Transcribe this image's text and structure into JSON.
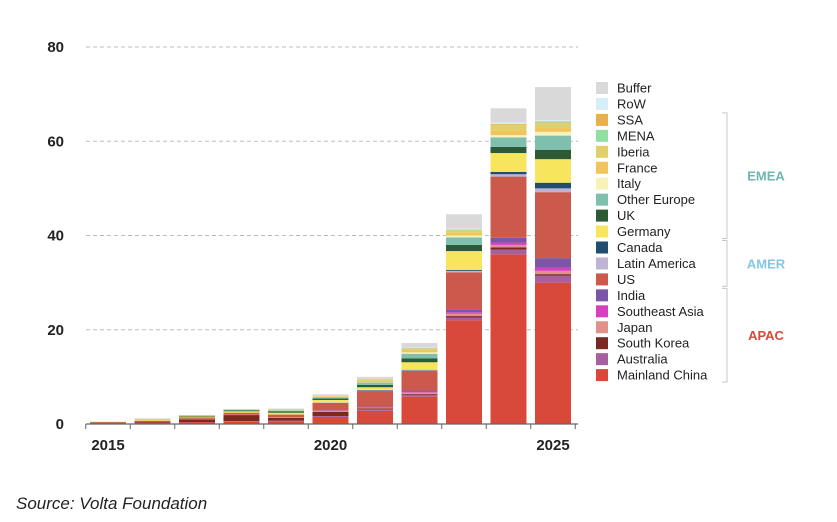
{
  "chart_data": {
    "type": "bar",
    "stacked": true,
    "title": "",
    "xlabel": "",
    "ylabel": "",
    "ylim": [
      0,
      80
    ],
    "yticks": [
      0,
      20,
      40,
      60,
      80
    ],
    "grid": true,
    "legend_position": "right",
    "categories": [
      "2015",
      "2016",
      "2017",
      "2018",
      "2019",
      "2020",
      "2021",
      "2022",
      "2023",
      "2024",
      "2025"
    ],
    "x_tick_labels": [
      {
        "index": 0,
        "label": "2015"
      },
      {
        "index": 5,
        "label": "2020"
      },
      {
        "index": 10,
        "label": "2025"
      }
    ],
    "series": [
      {
        "name": "Mainland China",
        "color": "#d9493a",
        "values": [
          0.2,
          0.3,
          0.4,
          0.5,
          0.6,
          1.5,
          2.8,
          5.8,
          22.0,
          36.0,
          30.0
        ]
      },
      {
        "name": "Australia",
        "color": "#a85fa0",
        "values": [
          0.0,
          0.0,
          0.0,
          0.1,
          0.1,
          0.2,
          0.3,
          0.4,
          0.6,
          1.0,
          1.5
        ]
      },
      {
        "name": "South Korea",
        "color": "#7a2a20",
        "values": [
          0.1,
          0.2,
          0.6,
          1.3,
          0.6,
          0.9,
          0.2,
          0.2,
          0.3,
          0.5,
          0.3
        ]
      },
      {
        "name": "Japan",
        "color": "#e0928a",
        "values": [
          0.0,
          0.0,
          0.1,
          0.1,
          0.1,
          0.2,
          0.2,
          0.3,
          0.5,
          0.5,
          0.7
        ]
      },
      {
        "name": "Southeast Asia",
        "color": "#d63fbf",
        "values": [
          0.0,
          0.0,
          0.0,
          0.0,
          0.0,
          0.0,
          0.1,
          0.2,
          0.3,
          0.5,
          0.7
        ]
      },
      {
        "name": "India",
        "color": "#7b55a8",
        "values": [
          0.0,
          0.0,
          0.0,
          0.0,
          0.0,
          0.1,
          0.1,
          0.2,
          0.5,
          1.0,
          2.0
        ]
      },
      {
        "name": "US",
        "color": "#cc5a4c",
        "values": [
          0.1,
          0.2,
          0.3,
          0.4,
          0.6,
          1.6,
          3.3,
          4.2,
          8.0,
          13.0,
          14.0
        ]
      },
      {
        "name": "Latin America",
        "color": "#c0b4d6",
        "values": [
          0.0,
          0.0,
          0.0,
          0.0,
          0.0,
          0.1,
          0.1,
          0.1,
          0.3,
          0.5,
          0.8
        ]
      },
      {
        "name": "Canada",
        "color": "#1f4e6e",
        "values": [
          0.0,
          0.0,
          0.0,
          0.0,
          0.0,
          0.0,
          0.1,
          0.1,
          0.2,
          0.5,
          1.2
        ]
      },
      {
        "name": "Germany",
        "color": "#f6e55d",
        "values": [
          0.1,
          0.2,
          0.2,
          0.3,
          0.4,
          0.5,
          0.6,
          1.6,
          4.0,
          4.0,
          5.0
        ]
      },
      {
        "name": "UK",
        "color": "#2c5a34",
        "values": [
          0.0,
          0.0,
          0.1,
          0.2,
          0.3,
          0.3,
          0.5,
          0.8,
          1.3,
          1.3,
          2.0
        ]
      },
      {
        "name": "Other Europe",
        "color": "#7fbfae",
        "values": [
          0.0,
          0.1,
          0.1,
          0.1,
          0.2,
          0.3,
          0.5,
          1.0,
          1.6,
          2.0,
          3.0
        ]
      },
      {
        "name": "Italy",
        "color": "#f7f2b8",
        "values": [
          0.0,
          0.0,
          0.0,
          0.0,
          0.1,
          0.1,
          0.1,
          0.3,
          0.4,
          0.5,
          0.8
        ]
      },
      {
        "name": "France",
        "color": "#f2c45c",
        "values": [
          0.0,
          0.1,
          0.0,
          0.1,
          0.1,
          0.2,
          0.3,
          0.4,
          0.6,
          1.0,
          0.8
        ]
      },
      {
        "name": "Iberia",
        "color": "#e0cf6a",
        "values": [
          0.0,
          0.0,
          0.0,
          0.0,
          0.1,
          0.1,
          0.2,
          0.3,
          0.5,
          1.0,
          1.0
        ]
      },
      {
        "name": "MENA",
        "color": "#93dfa3",
        "values": [
          0.0,
          0.0,
          0.0,
          0.0,
          0.0,
          0.0,
          0.1,
          0.1,
          0.1,
          0.2,
          0.2
        ]
      },
      {
        "name": "SSA",
        "color": "#e9b14c",
        "values": [
          0.0,
          0.0,
          0.0,
          0.0,
          0.0,
          0.0,
          0.1,
          0.1,
          0.1,
          0.2,
          0.2
        ]
      },
      {
        "name": "RoW",
        "color": "#d5eef7",
        "values": [
          0.0,
          0.0,
          0.0,
          0.0,
          0.0,
          0.0,
          0.0,
          0.1,
          0.2,
          0.3,
          0.3
        ]
      },
      {
        "name": "Buffer",
        "color": "#d9d9d9",
        "values": [
          0.0,
          0.1,
          0.1,
          0.1,
          0.1,
          0.2,
          0.4,
          1.0,
          3.0,
          3.0,
          7.0
        ]
      }
    ],
    "legend_order": [
      "Buffer",
      "RoW",
      "SSA",
      "MENA",
      "Iberia",
      "France",
      "Italy",
      "Other Europe",
      "UK",
      "Germany",
      "Canada",
      "Latin America",
      "US",
      "India",
      "Southeast Asia",
      "Japan",
      "South Korea",
      "Australia",
      "Mainland China"
    ],
    "region_groups": [
      {
        "label": "EMEA",
        "color": "#6db7b0",
        "first": "SSA",
        "last": "Germany"
      },
      {
        "label": "AMER",
        "color": "#85c6e2",
        "first": "Canada",
        "last": "US"
      },
      {
        "label": "APAC",
        "color": "#d44a3a",
        "first": "India",
        "last": "Mainland China"
      }
    ]
  },
  "source": "Source: Volta Foundation"
}
